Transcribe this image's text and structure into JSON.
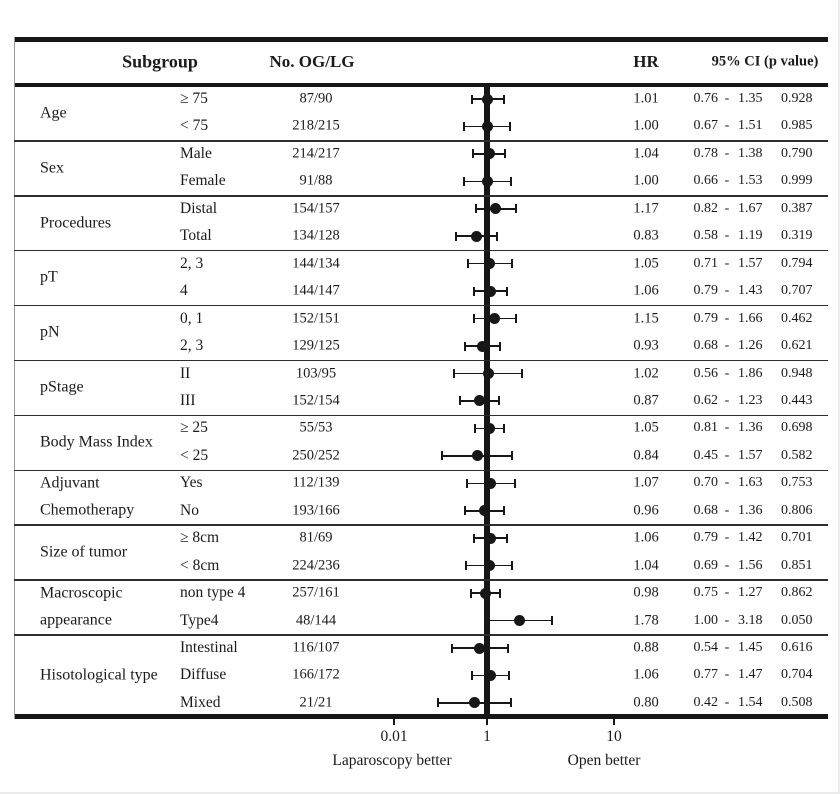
{
  "chart_data": {
    "type": "forest",
    "scale": "log",
    "title": "",
    "columns": [
      "Subgroup",
      "No. OG/LG",
      "HR",
      "95% CI (p value)"
    ],
    "reference_value": 1,
    "x_ticks": [
      "0.01",
      "1",
      "10"
    ],
    "x_axis_left_note": "Laparoscopy better",
    "x_axis_right_note": "Open better",
    "legend": "none",
    "marker_color": "#171717",
    "groups": [
      {
        "label_lines": [
          "Age"
        ],
        "rows": [
          {
            "category": "≥ 75",
            "n": "87/90",
            "hr": "1.01",
            "ci_low": "0.76",
            "ci_high": "1.35",
            "p": "0.928"
          },
          {
            "category": "< 75",
            "n": "218/215",
            "hr": "1.00",
            "ci_low": "0.67",
            "ci_high": "1.51",
            "p": "0.985"
          }
        ]
      },
      {
        "label_lines": [
          "Sex"
        ],
        "rows": [
          {
            "category": "Male",
            "n": "214/217",
            "hr": "1.04",
            "ci_low": "0.78",
            "ci_high": "1.38",
            "p": "0.790"
          },
          {
            "category": "Female",
            "n": "91/88",
            "hr": "1.00",
            "ci_low": "0.66",
            "ci_high": "1.53",
            "p": "0.999"
          }
        ]
      },
      {
        "label_lines": [
          "Procedures"
        ],
        "rows": [
          {
            "category": "Distal",
            "n": "154/157",
            "hr": "1.17",
            "ci_low": "0.82",
            "ci_high": "1.67",
            "p": "0.387"
          },
          {
            "category": "Total",
            "n": "134/128",
            "hr": "0.83",
            "ci_low": "0.58",
            "ci_high": "1.19",
            "p": "0.319"
          }
        ]
      },
      {
        "label_lines": [
          "pT"
        ],
        "rows": [
          {
            "category": "2, 3",
            "n": "144/134",
            "hr": "1.05",
            "ci_low": "0.71",
            "ci_high": "1.57",
            "p": "0.794"
          },
          {
            "category": "4",
            "n": "144/147",
            "hr": "1.06",
            "ci_low": "0.79",
            "ci_high": "1.43",
            "p": "0.707"
          }
        ]
      },
      {
        "label_lines": [
          "pN"
        ],
        "rows": [
          {
            "category": "0, 1",
            "n": "152/151",
            "hr": "1.15",
            "ci_low": "0.79",
            "ci_high": "1.66",
            "p": "0.462"
          },
          {
            "category": "2, 3",
            "n": "129/125",
            "hr": "0.93",
            "ci_low": "0.68",
            "ci_high": "1.26",
            "p": "0.621"
          }
        ]
      },
      {
        "label_lines": [
          "pStage"
        ],
        "rows": [
          {
            "category": "II",
            "n": "103/95",
            "hr": "1.02",
            "ci_low": "0.56",
            "ci_high": "1.86",
            "p": "0.948"
          },
          {
            "category": "III",
            "n": "152/154",
            "hr": "0.87",
            "ci_low": "0.62",
            "ci_high": "1.23",
            "p": "0.443"
          }
        ]
      },
      {
        "label_lines": [
          "Body Mass Index"
        ],
        "rows": [
          {
            "category": "≥ 25",
            "n": "55/53",
            "hr": "1.05",
            "ci_low": "0.81",
            "ci_high": "1.36",
            "p": "0.698"
          },
          {
            "category": "< 25",
            "n": "250/252",
            "hr": "0.84",
            "ci_low": "0.45",
            "ci_high": "1.57",
            "p": "0.582"
          }
        ]
      },
      {
        "label_lines": [
          "Adjuvant",
          "Chemotherapy"
        ],
        "rows": [
          {
            "category": "Yes",
            "n": "112/139",
            "hr": "1.07",
            "ci_low": "0.70",
            "ci_high": "1.63",
            "p": "0.753"
          },
          {
            "category": "No",
            "n": "193/166",
            "hr": "0.96",
            "ci_low": "0.68",
            "ci_high": "1.36",
            "p": "0.806"
          }
        ]
      },
      {
        "label_lines": [
          "Size of tumor"
        ],
        "rows": [
          {
            "category": "≥ 8cm",
            "n": "81/69",
            "hr": "1.06",
            "ci_low": "0.79",
            "ci_high": "1.42",
            "p": "0.701"
          },
          {
            "category": "< 8cm",
            "n": "224/236",
            "hr": "1.04",
            "ci_low": "0.69",
            "ci_high": "1.56",
            "p": "0.851"
          }
        ]
      },
      {
        "label_lines": [
          "Macroscopic",
          "appearance"
        ],
        "rows": [
          {
            "category": "non type 4",
            "n": "257/161",
            "hr": "0.98",
            "ci_low": "0.75",
            "ci_high": "1.27",
            "p": "0.862"
          },
          {
            "category": "Type4",
            "n": "48/144",
            "hr": "1.78",
            "ci_low": "1.00",
            "ci_high": "3.18",
            "p": "0.050"
          }
        ]
      },
      {
        "label_lines": [
          "Hisotological type"
        ],
        "rows": [
          {
            "category": "Intestinal",
            "n": "116/107",
            "hr": "0.88",
            "ci_low": "0.54",
            "ci_high": "1.45",
            "p": "0.616"
          },
          {
            "category": "Diffuse",
            "n": "166/172",
            "hr": "1.06",
            "ci_low": "0.77",
            "ci_high": "1.47",
            "p": "0.704"
          },
          {
            "category": "Mixed",
            "n": "21/21",
            "hr": "0.80",
            "ci_low": "0.42",
            "ci_high": "1.54",
            "p": "0.508"
          }
        ]
      }
    ]
  }
}
